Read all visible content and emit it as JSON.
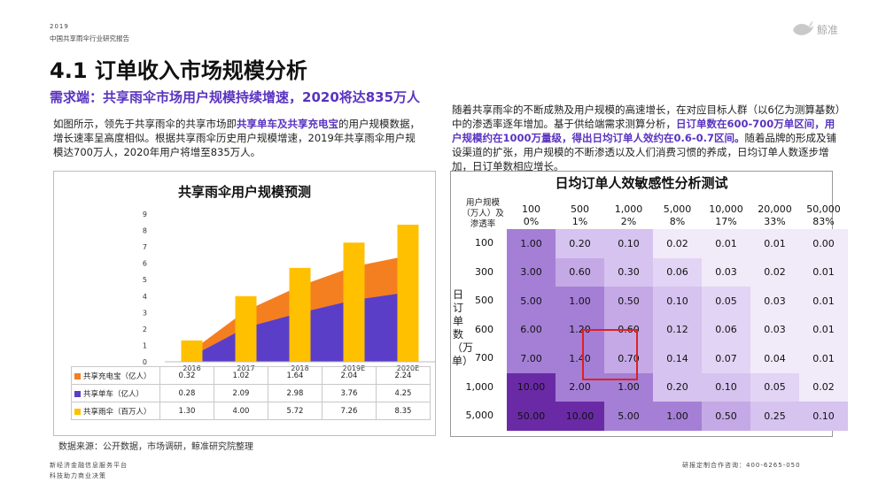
{
  "header": {
    "year": "2019",
    "report": "中国共享雨伞行业研究报告",
    "brand": "鲸准"
  },
  "title": "4.1 订单收入市场规模分析",
  "subtitle": "需求端：共享雨伞市场用户规模持续增速，2020将达835万人",
  "left_para": {
    "p1": "如图所示，领先于共享雨伞的共享市场即",
    "hl1": "共享单车及共享充电宝",
    "p2": "的用户规模数据，增长速率呈高度相似。根据共享雨伞历史用户规模增速，2019年共享雨伞用户规模达700万人，2020年用户将增至835万人。"
  },
  "right_para": {
    "p1": "随着共享雨伞的不断成熟及用户规模的高速增长，在对应目标人群（以6亿为测算基数）中的渗透率逐年增加。基于供给端需求测算分析，",
    "hl1": "日订单数在600-700万单区间，用户规模约在1000万量级，得出日均订单人效约在0.6-0.7区间。",
    "p2": "随着品牌的形成及铺设渠道的扩张，用户规模的不断渗透以及人们消费习惯的养成，日均订单人数逐步增加，日订单数相应增长。"
  },
  "source": "数据来源：公开数据，市场调研，鲸准研究院整理",
  "footer": {
    "left1": "新经济金融信息服务平台",
    "left2": "科技助力商业决策",
    "right": "研报定制合作咨询：400-6265-050"
  },
  "colors": {
    "charger": "#f47f20",
    "bike": "#5a3ec8",
    "umbrella": "#ffc000",
    "accent": "#5a33c0"
  },
  "chart_data": [
    {
      "type": "bar",
      "title": "共享雨伞用户规模预测",
      "categories": [
        "2016",
        "2017",
        "2018",
        "2019E",
        "2020E"
      ],
      "ylim": [
        0,
        9
      ],
      "yticks": [
        "0",
        "1",
        "2",
        "3",
        "4",
        "5",
        "6",
        "7",
        "8",
        "9"
      ],
      "series": [
        {
          "name": "共享充电宝（亿人）",
          "kind": "area",
          "values": [
            0.32,
            1.02,
            1.64,
            2.04,
            2.24
          ],
          "display": [
            "0.32",
            "1.02",
            "1.64",
            "2.04",
            "2.24"
          ]
        },
        {
          "name": "共享单车（亿人）",
          "kind": "area",
          "values": [
            0.28,
            2.09,
            2.98,
            3.76,
            4.25
          ],
          "display": [
            "0.28",
            "2.09",
            "2.98",
            "3.76",
            "4.25"
          ]
        },
        {
          "name": "共享雨伞（百万人）",
          "kind": "bar",
          "values": [
            1.3,
            4.0,
            5.72,
            7.26,
            8.35
          ],
          "display": [
            "1.30",
            "4.00",
            "5.72",
            "7.26",
            "8.35"
          ]
        }
      ]
    },
    {
      "type": "heatmap",
      "title": "日均订单人效敏感性分析测试",
      "corner_label": [
        "用户规模",
        "（万人）及",
        "渗透率"
      ],
      "row_axis_label": "日订单数（万单）",
      "columns": [
        {
          "users": "100",
          "rate": "0%"
        },
        {
          "users": "500",
          "rate": "1%"
        },
        {
          "users": "1,000",
          "rate": "2%"
        },
        {
          "users": "5,000",
          "rate": "8%"
        },
        {
          "users": "10,000",
          "rate": "17%"
        },
        {
          "users": "20,000",
          "rate": "33%"
        },
        {
          "users": "50,000",
          "rate": "83%"
        }
      ],
      "rows": [
        "100",
        "300",
        "500",
        "600",
        "700",
        "1,000",
        "5,000"
      ],
      "values": [
        [
          "1.00",
          "0.20",
          "0.10",
          "0.02",
          "0.01",
          "0.01",
          "0.00"
        ],
        [
          "3.00",
          "0.60",
          "0.30",
          "0.06",
          "0.03",
          "0.02",
          "0.01"
        ],
        [
          "5.00",
          "1.00",
          "0.50",
          "0.10",
          "0.05",
          "0.03",
          "0.01"
        ],
        [
          "6.00",
          "1.20",
          "0.60",
          "0.12",
          "0.06",
          "0.03",
          "0.01"
        ],
        [
          "7.00",
          "1.40",
          "0.70",
          "0.14",
          "0.07",
          "0.04",
          "0.01"
        ],
        [
          "10.00",
          "2.00",
          "1.00",
          "0.20",
          "0.10",
          "0.05",
          "0.02"
        ],
        [
          "50.00",
          "10.00",
          "5.00",
          "1.00",
          "0.50",
          "0.25",
          "0.10"
        ]
      ]
    }
  ]
}
